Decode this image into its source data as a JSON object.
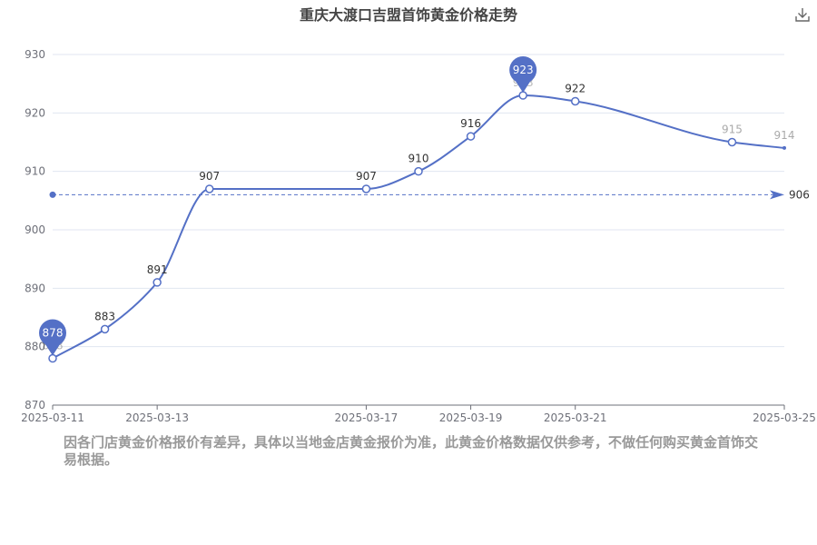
{
  "page": {
    "title": "重庆大渡口吉盟首饰黄金价格走势",
    "download_icon": "download-icon",
    "note": "因各门店黄金价格报价有差异，具体以当地金店黄金报价为准，此黄金价格数据仅供参考，不做任何购买黄金首饰交易根据。"
  },
  "chart_data": {
    "type": "line",
    "title": "重庆大渡口吉盟首饰黄金价格走势",
    "xlabel": "",
    "ylabel": "",
    "ylim": [
      870,
      930
    ],
    "y_ticks": [
      870,
      880,
      890,
      900,
      910,
      920,
      930
    ],
    "x_tick_labels": [
      "2025-03-11",
      "2025-03-13",
      "2025-03-17",
      "2025-03-19",
      "2025-03-21",
      "2025-03-25"
    ],
    "x": [
      "2025-03-11",
      "2025-03-12",
      "2025-03-13",
      "2025-03-14",
      "2025-03-17",
      "2025-03-18",
      "2025-03-19",
      "2025-03-20",
      "2025-03-21",
      "2025-03-24",
      "2025-03-25"
    ],
    "values": [
      878,
      883,
      891,
      907,
      907,
      910,
      916,
      923,
      922,
      915,
      914
    ],
    "markers": {
      "max": {
        "value": 923,
        "label": "923"
      },
      "min": {
        "value": 878,
        "label": "878"
      }
    },
    "average_line": {
      "value": 906,
      "label": "906"
    },
    "grid": true,
    "line_color": "#5470c6",
    "axis_color": "#6e7079",
    "grid_color": "#e0e6f1"
  }
}
